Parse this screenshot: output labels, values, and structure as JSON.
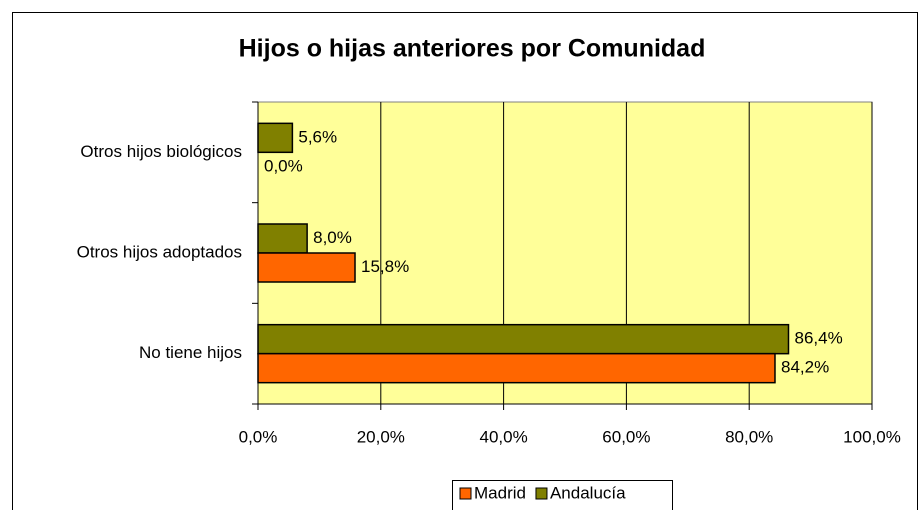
{
  "chart_data": {
    "type": "bar",
    "orientation": "horizontal",
    "title": "Hijos o hijas anteriores por Comunidad",
    "categories": [
      "Otros hijos biológicos",
      "Otros hijos adoptados",
      "No tiene hijos"
    ],
    "series": [
      {
        "name": "Andalucía",
        "color": "#808000",
        "values": [
          5.6,
          8.0,
          86.4
        ],
        "value_labels": [
          "5,6%",
          "8,0%",
          "86,4%"
        ]
      },
      {
        "name": "Madrid",
        "color": "#ff6600",
        "values": [
          0.0,
          15.8,
          84.2
        ],
        "value_labels": [
          "0,0%",
          "15,8%",
          "84,2%"
        ]
      }
    ],
    "xlim": [
      0,
      100
    ],
    "xticks": [
      {
        "value": 0,
        "label": "0,0%"
      },
      {
        "value": 20,
        "label": "20,0%"
      },
      {
        "value": 40,
        "label": "40,0%"
      },
      {
        "value": 60,
        "label": "60,0%"
      },
      {
        "value": 80,
        "label": "80,0%"
      },
      {
        "value": 100,
        "label": "100,0%"
      }
    ],
    "grid": true,
    "legend": "bottom"
  }
}
